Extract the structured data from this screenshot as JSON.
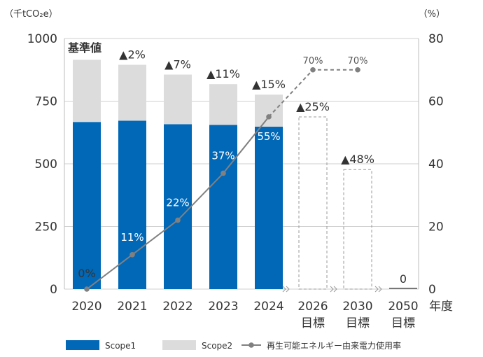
{
  "chart_data": {
    "type": "bar",
    "categories": [
      "2020",
      "2021",
      "2022",
      "2023",
      "2024",
      "2026",
      "2030",
      "2050"
    ],
    "category_sublabels": [
      "",
      "",
      "",
      "",
      "",
      "目標",
      "目標",
      "目標"
    ],
    "xlabel": "年度",
    "y_left": {
      "unit_label": "（千tCO₂e）",
      "ylim": [
        0,
        1000
      ],
      "ticks": [
        "0",
        "250",
        "500",
        "750",
        "1000"
      ]
    },
    "y_right": {
      "unit_label": "（%）",
      "ylim": [
        0,
        80
      ],
      "ticks": [
        "0",
        "20",
        "40",
        "60",
        "80"
      ]
    },
    "baseline_label": "基準値",
    "series": [
      {
        "name": "Scope1",
        "type": "stacked-bar",
        "color": "#0068b7",
        "values": [
          667,
          672,
          658,
          655,
          648,
          null,
          null,
          null
        ]
      },
      {
        "name": "Scope2",
        "type": "stacked-bar",
        "color": "#dcdcdc",
        "values": [
          248,
          223,
          198,
          163,
          128,
          null,
          null,
          null
        ]
      },
      {
        "name": "再生可能エネルギー由来電力使用率",
        "type": "line",
        "axis": "right",
        "color": "#808080",
        "values": [
          0,
          11,
          22,
          37,
          55,
          null,
          70,
          70
        ],
        "x_positions": [
          0,
          1,
          2,
          3,
          4,
          null,
          5,
          6
        ],
        "dashed_from_index": 4
      }
    ],
    "targets": [
      {
        "category": "2026",
        "total": 687,
        "style": "dashed-outline"
      },
      {
        "category": "2030",
        "total": 477,
        "style": "dashed-outline"
      },
      {
        "category": "2050",
        "total": 0,
        "style": "line"
      }
    ],
    "bar_labels": [
      "",
      "▲2%",
      "▲7%",
      "▲11%",
      "▲15%",
      "▲25%",
      "▲48%",
      "0"
    ],
    "line_labels": [
      "0%",
      "11%",
      "22%",
      "37%",
      "55%",
      "70%",
      "70%"
    ],
    "legend": [
      "Scope1",
      "Scope2",
      "再生可能エネルギー由来電力使用率"
    ]
  }
}
